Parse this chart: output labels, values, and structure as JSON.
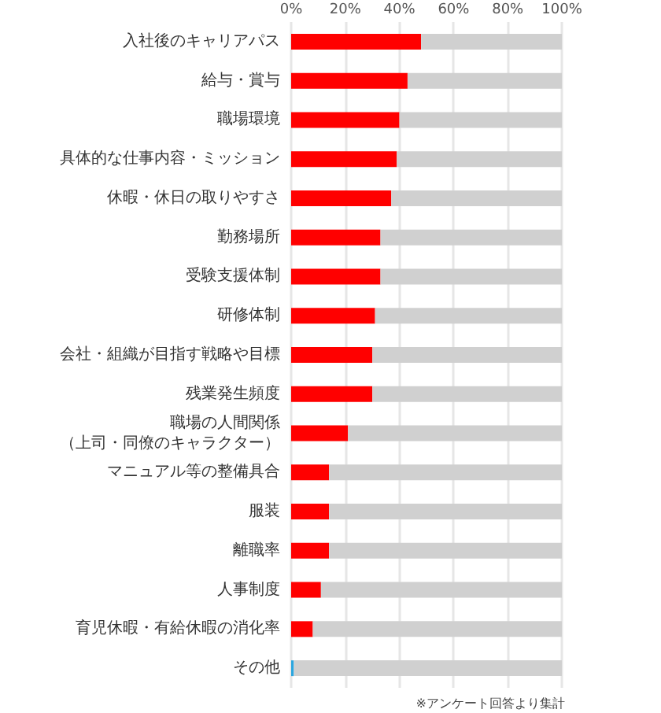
{
  "chart_data": {
    "type": "bar",
    "orientation": "horizontal",
    "stacked": true,
    "categories": [
      "入社後のキャリアパス",
      "給与・賞与",
      "職場環境",
      "具体的な仕事内容・ミッション",
      "休暇・休日の取りやすさ",
      "勤務場所",
      "受験支援体制",
      "研修体制",
      "会社・組織が目指す戦略や目標",
      "残業発生頻度",
      "職場の人間関係（上司・同僚のキャラクター）",
      "マニュアル等の整備具合",
      "服装",
      "離職率",
      "人事制度",
      "育児休暇・有給休暇の消化率",
      "その他"
    ],
    "series": [
      {
        "colors": [
          "#ff0000",
          "#ff0000",
          "#ff0000",
          "#ff0000",
          "#ff0000",
          "#ff0000",
          "#ff0000",
          "#ff0000",
          "#ff0000",
          "#ff0000",
          "#ff0000",
          "#ff0000",
          "#ff0000",
          "#ff0000",
          "#ff0000",
          "#ff0000",
          "#2ca6df"
        ],
        "values": [
          48,
          43,
          40,
          39,
          37,
          33,
          33,
          31,
          30,
          30,
          21,
          14,
          14,
          14,
          11,
          8,
          1
        ]
      },
      {
        "color": "#d0d0d0",
        "values": [
          52,
          57,
          60,
          61,
          63,
          67,
          67,
          69,
          70,
          70,
          79,
          86,
          86,
          86,
          89,
          92,
          99
        ]
      }
    ],
    "xlim": [
      0,
      100
    ],
    "xticks": [
      {
        "value": 0,
        "label": "0%"
      },
      {
        "value": 20,
        "label": "20%"
      },
      {
        "value": 40,
        "label": "40%"
      },
      {
        "value": 60,
        "label": "60%"
      },
      {
        "value": 80,
        "label": "80%"
      },
      {
        "value": 100,
        "label": "100%"
      }
    ],
    "grid": "x",
    "annotations": [
      "※アンケート回答より集計"
    ]
  }
}
